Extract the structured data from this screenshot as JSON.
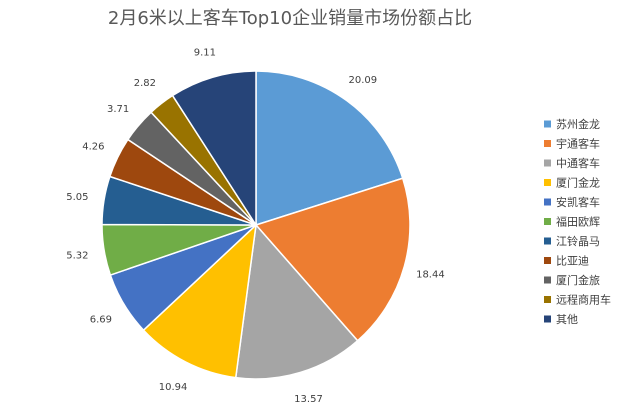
{
  "chart_data": {
    "type": "pie",
    "title": "2月6米以上客车Top10企业销量市场份额占比",
    "labels": [
      "苏州金龙",
      "宇通客车",
      "中通客车",
      "厦门金龙",
      "安凯客车",
      "福田欧辉",
      "江铃晶马",
      "比亚迪",
      "厦门金旅",
      "远程商用车",
      "其他"
    ],
    "values": [
      20.09,
      18.44,
      13.57,
      10.94,
      6.69,
      5.32,
      5.05,
      4.26,
      3.71,
      2.82,
      9.11
    ],
    "value_labels": [
      "20.09",
      "18.44",
      "13.57",
      "10.94",
      "6.69",
      "5.32",
      "5.05",
      "4.26",
      "3.71",
      "2.82",
      "9.11"
    ],
    "colors": [
      "#5B9BD5",
      "#ED7D31",
      "#A5A5A5",
      "#FFC000",
      "#4472C4",
      "#70AD47",
      "#255E91",
      "#9E480E",
      "#636363",
      "#997300",
      "#264478"
    ],
    "legend_position": "right",
    "data_labels": "outside"
  }
}
